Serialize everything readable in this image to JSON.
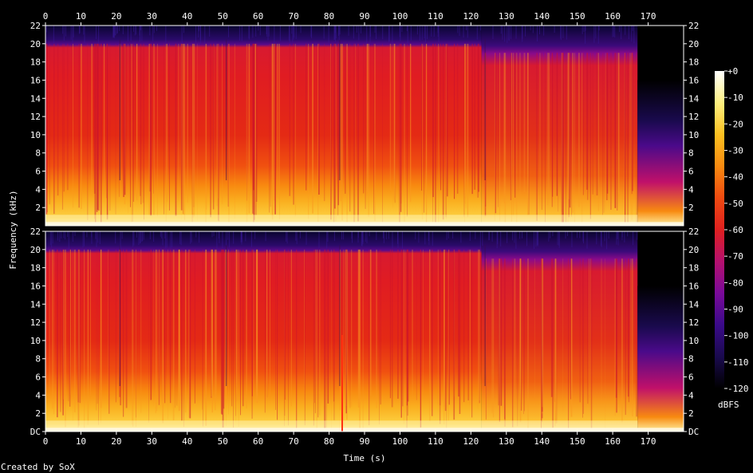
{
  "chart_data": {
    "type": "heatmap",
    "title": "",
    "channels": 2,
    "xlabel": "Time (s)",
    "ylabel": "Frequency (kHz)",
    "xlim": [
      0,
      180
    ],
    "ylim": [
      0,
      22
    ],
    "x_ticks": [
      "0",
      "10",
      "20",
      "30",
      "40",
      "50",
      "60",
      "70",
      "80",
      "90",
      "100",
      "110",
      "120",
      "130",
      "140",
      "150",
      "160",
      "170"
    ],
    "y_ticks_top": [
      "2",
      "4",
      "6",
      "8",
      "10",
      "12",
      "14",
      "16",
      "18",
      "20",
      "22"
    ],
    "y_ticks_bottom": [
      "DC",
      "2",
      "4",
      "6",
      "8",
      "10",
      "12",
      "14",
      "16",
      "18",
      "20",
      "22"
    ],
    "colorbar": {
      "label": "dBFS",
      "ticks": [
        "+0",
        "-10",
        "-20",
        "-30",
        "-40",
        "-50",
        "-60",
        "-70",
        "-80",
        "-90",
        "-100",
        "-110",
        "-120"
      ],
      "range": [
        -120,
        0
      ]
    },
    "audio_end_s": 167,
    "lowpass_change_s": 123,
    "cutoff_khz_before": 20,
    "cutoff_khz_after": 19,
    "colors": [
      "#000000",
      "#1a0a4e",
      "#3a0a8a",
      "#7a0a9a",
      "#b5106e",
      "#e02020",
      "#f04a10",
      "#f88a10",
      "#fcc020",
      "#fef080",
      "#ffffff"
    ]
  },
  "footer": {
    "credit": "Created by SoX"
  }
}
